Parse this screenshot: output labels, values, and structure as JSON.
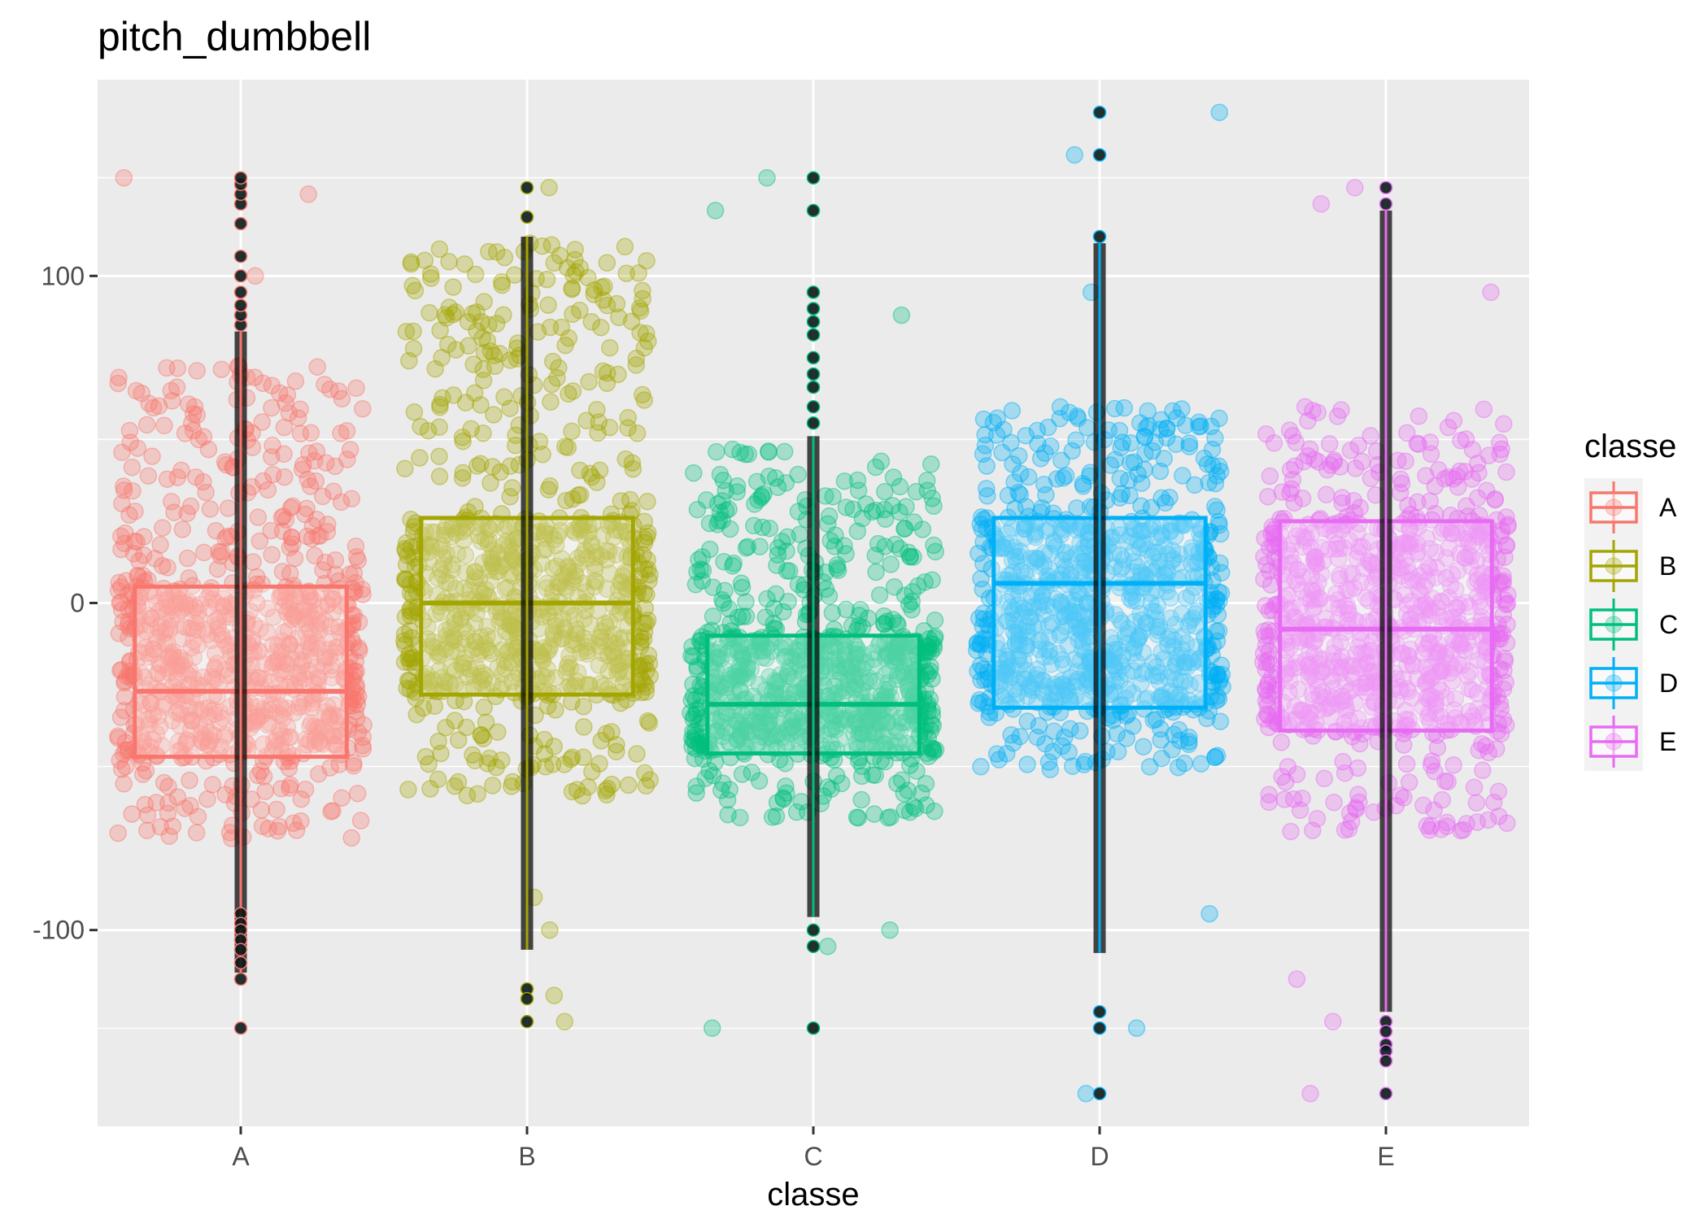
{
  "chart_data": {
    "type": "box+jitter",
    "title": "pitch_dumbbell",
    "xlabel": "classe",
    "ylabel": "",
    "categories": [
      "A",
      "B",
      "C",
      "D",
      "E"
    ],
    "ylim": [
      -160,
      160
    ],
    "yticks": [
      -100,
      0,
      100
    ],
    "grid": true,
    "background": "#EBEBEB",
    "legend": {
      "title": "classe",
      "position": "right",
      "entries": [
        "A",
        "B",
        "C",
        "D",
        "E"
      ]
    },
    "colors": {
      "A": "#F8766D",
      "B": "#A3A500",
      "C": "#00BF7D",
      "D": "#00B0F6",
      "E": "#E76BF3"
    },
    "series": [
      {
        "category": "A",
        "q1": -47,
        "median": -27,
        "q3": 5,
        "whisker_low": -113,
        "whisker_high": 83,
        "outliers_high": [
          85,
          88,
          91,
          95,
          100,
          106,
          116,
          122,
          125,
          128,
          130
        ],
        "outliers_low": [
          -95,
          -98,
          -100,
          -103,
          -106,
          -110,
          -115,
          -130
        ],
        "jitter_range": [
          -72,
          73
        ],
        "jitter_spread": [
          -35,
          -2,
          55,
          100,
          125,
          130
        ]
      },
      {
        "category": "B",
        "q1": -28,
        "median": 0,
        "q3": 26,
        "whisker_low": -106,
        "whisker_high": 112,
        "outliers_high": [
          118,
          127
        ],
        "outliers_low": [
          -118,
          -121,
          -128
        ],
        "jitter_range": [
          -60,
          110
        ],
        "jitter_spread": [
          -128,
          -120,
          -100,
          -90,
          110,
          127
        ]
      },
      {
        "category": "C",
        "q1": -46,
        "median": -31,
        "q3": -10,
        "whisker_low": -96,
        "whisker_high": 51,
        "outliers_high": [
          55,
          60,
          66,
          70,
          75,
          82,
          86,
          90,
          95,
          120,
          130
        ],
        "outliers_low": [
          -100,
          -105,
          -130
        ],
        "jitter_range": [
          -66,
          47
        ],
        "jitter_spread": [
          -130,
          -105,
          -100,
          88,
          120,
          130
        ]
      },
      {
        "category": "D",
        "q1": -32,
        "median": 6,
        "q3": 26,
        "whisker_low": -107,
        "whisker_high": 110,
        "outliers_high": [
          112,
          137,
          150
        ],
        "outliers_low": [
          -125,
          -130,
          -150
        ],
        "jitter_range": [
          -52,
          60
        ],
        "jitter_spread": [
          -150,
          -130,
          -95,
          95,
          137,
          150
        ]
      },
      {
        "category": "E",
        "q1": -39,
        "median": -8,
        "q3": 25,
        "whisker_low": -125,
        "whisker_high": 120,
        "outliers_high": [
          122,
          127
        ],
        "outliers_low": [
          -128,
          -131,
          -135,
          -137,
          -140,
          -150
        ],
        "jitter_range": [
          -70,
          60
        ],
        "jitter_spread": [
          -150,
          -128,
          -115,
          95,
          122,
          127
        ]
      }
    ]
  }
}
